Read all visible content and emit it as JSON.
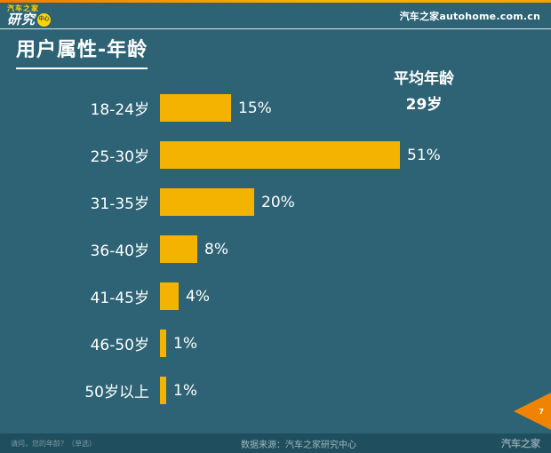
{
  "theme": {
    "background": "#2d6374",
    "bar_color": "#f5b301",
    "accent_orange": "#f08300",
    "footer_background": "#1f4f5e",
    "text_color": "#ffffff",
    "logo_yellow": "#ffd400"
  },
  "header": {
    "logo_top": "汽车之家",
    "logo_main": "研究",
    "logo_badge": "中心",
    "site": "汽车之家autohome.com.cn"
  },
  "title": "用户属性-年龄",
  "average": {
    "label": "平均年龄",
    "value": "29岁"
  },
  "chart_data": {
    "type": "bar",
    "orientation": "horizontal",
    "title": "用户属性-年龄",
    "categories": [
      "18-24岁",
      "25-30岁",
      "31-35岁",
      "36-40岁",
      "41-45岁",
      "46-50岁",
      "50岁以上"
    ],
    "values": [
      15,
      51,
      20,
      8,
      4,
      1,
      1
    ],
    "value_labels": [
      "15%",
      "51%",
      "20%",
      "8%",
      "4%",
      "1%",
      "1%"
    ],
    "xlim": [
      0,
      55
    ],
    "grid": false,
    "legend": "none",
    "annotations": [
      "平均年龄 29岁"
    ]
  },
  "footer": {
    "question": "请问，您的年龄？（单选）",
    "source": "数据来源：汽车之家研究中心",
    "brand": "汽车之家",
    "page": "7"
  }
}
